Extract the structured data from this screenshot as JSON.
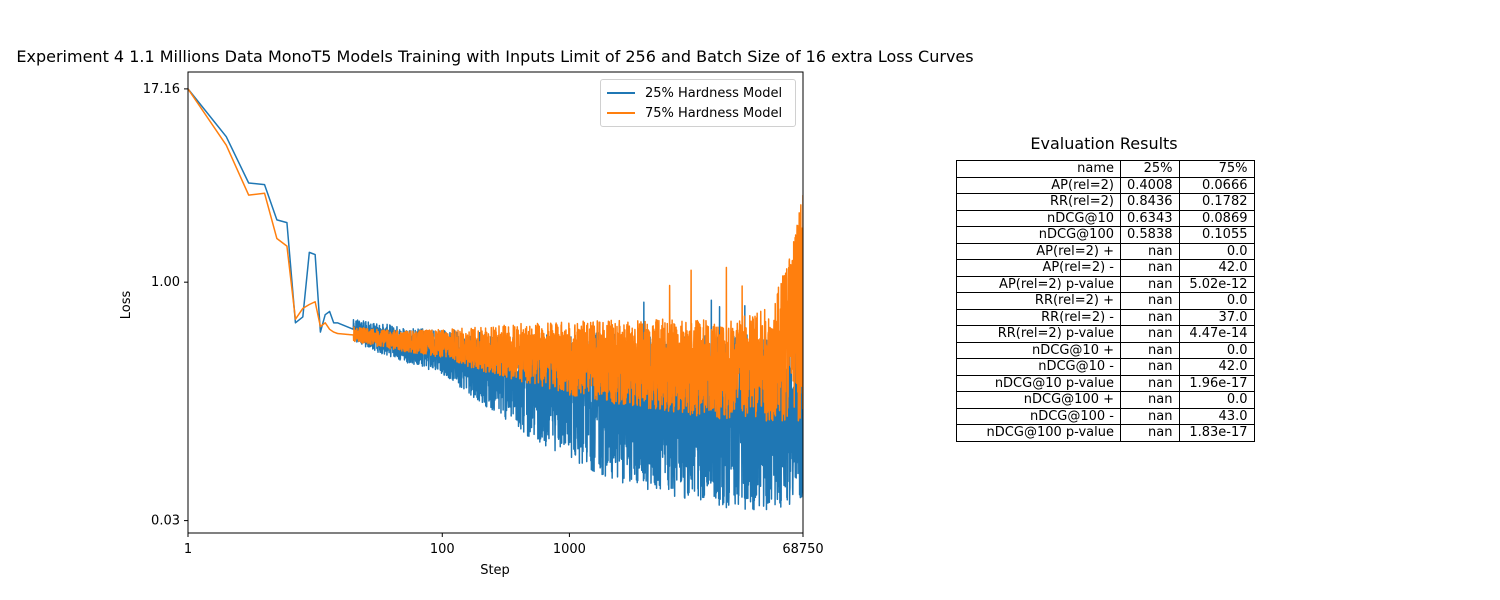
{
  "chart_data": [
    {
      "type": "line",
      "title": "Experiment 4 1.1 Millions Data MonoT5 Models Training with Inputs Limit of 256 and Batch Size of 16 extra Loss Curves",
      "xlabel": "Step",
      "ylabel": "Loss",
      "xscale": "log",
      "yscale": "log",
      "xlim": [
        1,
        68750
      ],
      "ylim": [
        0.025,
        22
      ],
      "xticks": [
        "1",
        "100",
        "1000",
        "68750"
      ],
      "yticks": [
        "0.03",
        "1.00",
        "17.16"
      ],
      "legend_position": "top-right",
      "series": [
        {
          "name": "25% Hardness Model",
          "color": "#1f77b4",
          "x": [
            1,
            2,
            3,
            4,
            5,
            6,
            7,
            8,
            9,
            10,
            11,
            12,
            13,
            14,
            15,
            20,
            30,
            50,
            100,
            200,
            500,
            1000,
            2000,
            5000,
            10000,
            20000,
            40000,
            68750
          ],
          "y": [
            17.16,
            8.5,
            4.3,
            4.2,
            2.5,
            2.4,
            0.55,
            0.6,
            1.55,
            1.5,
            0.48,
            0.62,
            0.65,
            0.55,
            0.55,
            0.5,
            0.45,
            0.4,
            0.38,
            0.28,
            0.2,
            0.16,
            0.13,
            0.1,
            0.085,
            0.075,
            0.07,
            0.09
          ],
          "low": [
            null,
            null,
            null,
            null,
            null,
            null,
            null,
            null,
            null,
            null,
            null,
            null,
            null,
            null,
            null,
            0.42,
            0.36,
            0.31,
            0.26,
            0.17,
            0.1,
            0.075,
            0.055,
            0.045,
            0.04,
            0.035,
            0.035,
            0.04
          ],
          "high": [
            null,
            null,
            null,
            null,
            null,
            null,
            null,
            null,
            null,
            null,
            null,
            null,
            null,
            null,
            null,
            0.58,
            0.55,
            0.52,
            0.5,
            0.48,
            0.46,
            0.48,
            0.48,
            0.45,
            0.45,
            0.47,
            0.48,
            0.5
          ]
        },
        {
          "name": "75% Hardness Model",
          "color": "#ff7f0e",
          "x": [
            1,
            2,
            3,
            4,
            5,
            6,
            7,
            8,
            9,
            10,
            11,
            12,
            13,
            14,
            15,
            20,
            30,
            50,
            100,
            200,
            500,
            1000,
            2000,
            5000,
            10000,
            20000,
            40000,
            68750
          ],
          "y": [
            17.16,
            7.5,
            3.6,
            3.7,
            1.9,
            1.7,
            0.58,
            0.68,
            0.72,
            0.75,
            0.52,
            0.55,
            0.5,
            0.48,
            0.47,
            0.46,
            0.44,
            0.42,
            0.4,
            0.36,
            0.33,
            0.3,
            0.29,
            0.27,
            0.25,
            0.24,
            0.24,
            0.25
          ],
          "low": [
            null,
            null,
            null,
            null,
            null,
            null,
            null,
            null,
            null,
            null,
            null,
            null,
            null,
            null,
            null,
            0.42,
            0.39,
            0.36,
            0.33,
            0.27,
            0.22,
            0.19,
            0.17,
            0.15,
            0.14,
            0.13,
            0.13,
            0.13
          ],
          "high": [
            null,
            null,
            null,
            null,
            null,
            null,
            null,
            null,
            null,
            null,
            null,
            null,
            null,
            null,
            null,
            0.52,
            0.5,
            0.49,
            0.5,
            0.52,
            0.55,
            0.56,
            0.57,
            0.58,
            0.58,
            0.6,
            0.7,
            3.6
          ]
        }
      ]
    },
    {
      "type": "table",
      "title": "Evaluation Results",
      "columns": [
        "name",
        "25%",
        "75%"
      ],
      "rows": [
        [
          "AP(rel=2)",
          "0.4008",
          "0.0666"
        ],
        [
          "RR(rel=2)",
          "0.8436",
          "0.1782"
        ],
        [
          "nDCG@10",
          "0.6343",
          "0.0869"
        ],
        [
          "nDCG@100",
          "0.5838",
          "0.1055"
        ],
        [
          "AP(rel=2) +",
          "nan",
          "0.0"
        ],
        [
          "AP(rel=2) -",
          "nan",
          "42.0"
        ],
        [
          "AP(rel=2) p-value",
          "nan",
          "5.02e-12"
        ],
        [
          "RR(rel=2) +",
          "nan",
          "0.0"
        ],
        [
          "RR(rel=2) -",
          "nan",
          "37.0"
        ],
        [
          "RR(rel=2) p-value",
          "nan",
          "4.47e-14"
        ],
        [
          "nDCG@10 +",
          "nan",
          "0.0"
        ],
        [
          "nDCG@10 -",
          "nan",
          "42.0"
        ],
        [
          "nDCG@10 p-value",
          "nan",
          "1.96e-17"
        ],
        [
          "nDCG@100 +",
          "nan",
          "0.0"
        ],
        [
          "nDCG@100 -",
          "nan",
          "43.0"
        ],
        [
          "nDCG@100 p-value",
          "nan",
          "1.83e-17"
        ]
      ]
    }
  ]
}
